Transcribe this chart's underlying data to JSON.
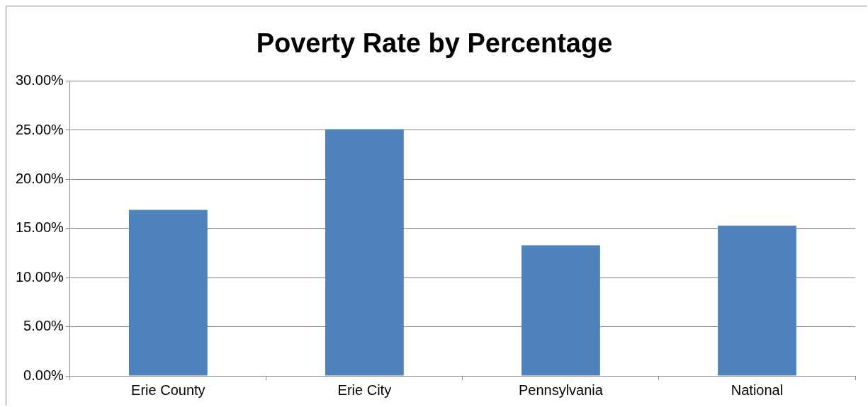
{
  "chart_data": {
    "type": "bar",
    "title": "Poverty Rate by Percentage",
    "categories": [
      "Erie County",
      "Erie City",
      "Pennsylvania",
      "National"
    ],
    "values": [
      16.9,
      25.1,
      13.3,
      15.3
    ],
    "color": "#4f81bd",
    "ylim": [
      0,
      30
    ],
    "yticks": [
      {
        "value": 0,
        "label": "0.00%"
      },
      {
        "value": 5,
        "label": "5.00%"
      },
      {
        "value": 10,
        "label": "10.00%"
      },
      {
        "value": 15,
        "label": "15.00%"
      },
      {
        "value": 20,
        "label": "20.00%"
      },
      {
        "value": 25,
        "label": "25.00%"
      },
      {
        "value": 30,
        "label": "30.00%"
      }
    ],
    "grid": "y",
    "legend": false
  }
}
